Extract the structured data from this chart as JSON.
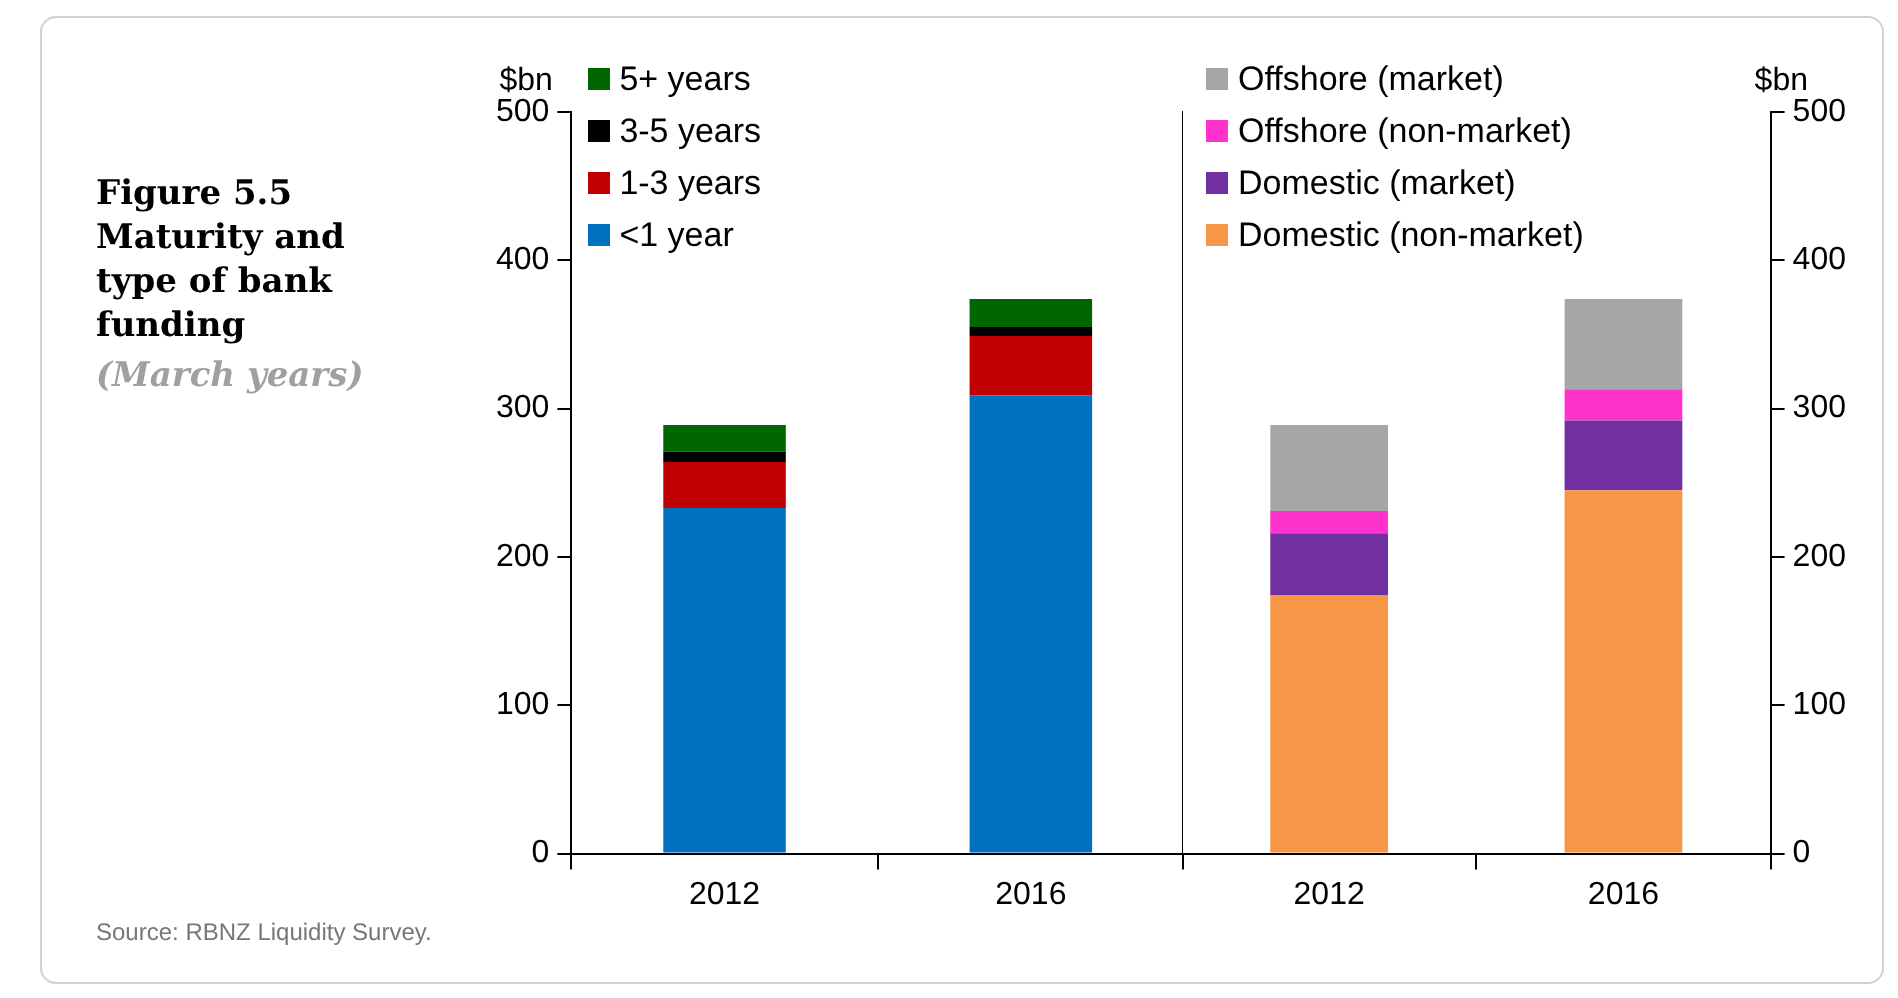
{
  "chart_data": [
    {
      "type": "bar",
      "title": "Figure 5.5 Maturity and type of bank funding",
      "subtitle": "(March years)",
      "ylabel": "$bn",
      "annotations": [
        "Source: RBNZ Liquidity Survey."
      ],
      "categories": [
        "2012",
        "2016"
      ],
      "stacked": true,
      "grid": false,
      "legend": "top left",
      "ylim": [
        0,
        500
      ],
      "yticks": [
        0,
        100,
        200,
        300,
        400,
        500
      ],
      "series": [
        {
          "name": "<1 year",
          "color": "#0070c0",
          "values": [
            233,
            309
          ]
        },
        {
          "name": "1-3 years",
          "color": "#c00000",
          "values": [
            31,
            40
          ]
        },
        {
          "name": "3-5 years",
          "color": "#000000",
          "values": [
            7,
            6
          ]
        },
        {
          "name": "5+ years",
          "color": "#006600",
          "values": [
            18,
            19
          ]
        }
      ]
    },
    {
      "type": "bar",
      "ylabel": "$bn",
      "categories": [
        "2012",
        "2016"
      ],
      "stacked": true,
      "grid": false,
      "legend": "top left",
      "ylim": [
        0,
        500
      ],
      "yticks": [
        0,
        100,
        200,
        300,
        400,
        500
      ],
      "series": [
        {
          "name": "Domestic (non-market)",
          "color": "#f79646",
          "values": [
            174,
            245
          ]
        },
        {
          "name": "Domestic (market)",
          "color": "#7030a0",
          "values": [
            42,
            47
          ]
        },
        {
          "name": "Offshore (non-market)",
          "color": "#ff33cc",
          "values": [
            15,
            21
          ]
        },
        {
          "name": "Offshore (market)",
          "color": "#a6a6a6",
          "values": [
            58,
            61
          ]
        }
      ]
    }
  ]
}
